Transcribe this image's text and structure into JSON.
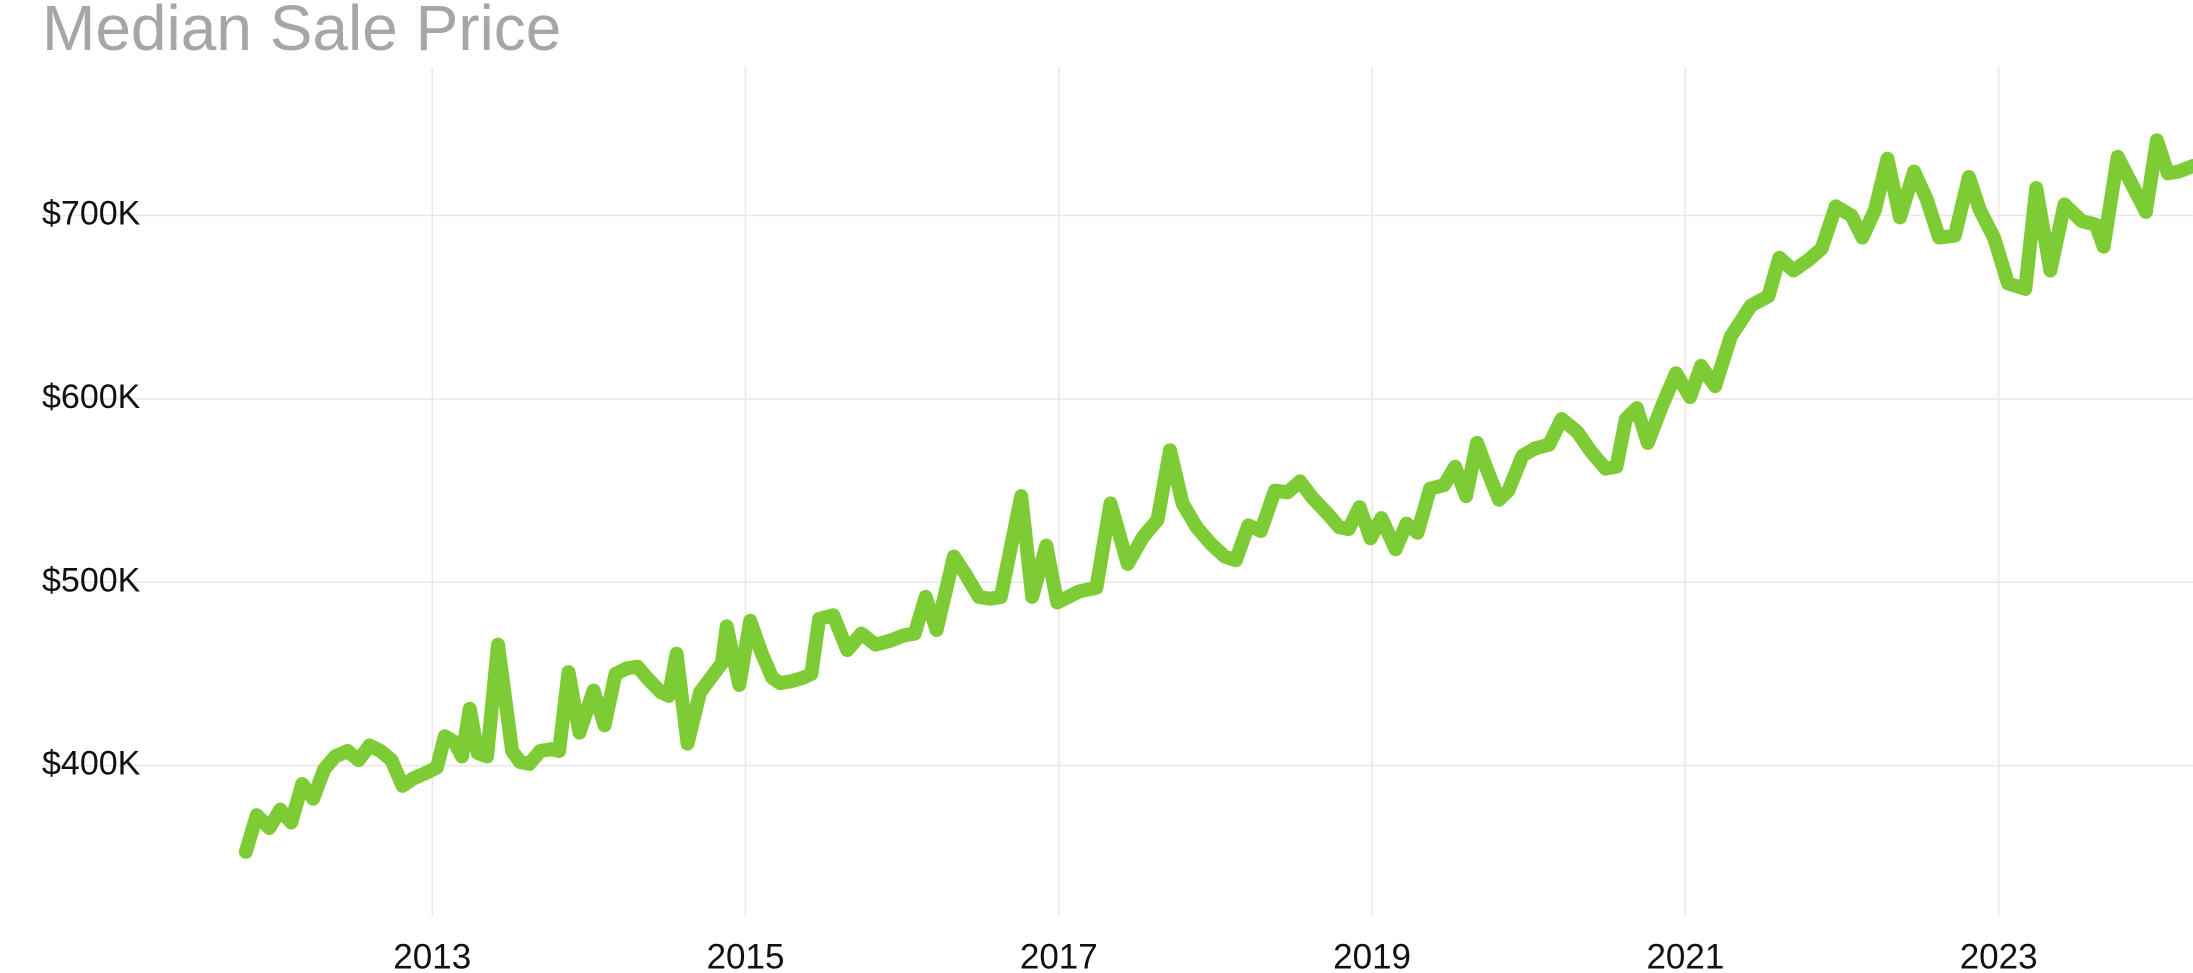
{
  "chart_data": {
    "type": "line",
    "title": "Median Sale Price",
    "color": "#7dcc35",
    "grid": true,
    "xlim": [
      2011.7,
      2024.24
    ],
    "xticks": [
      2013,
      2015,
      2017,
      2019,
      2021,
      2023
    ],
    "ylim": [
      318000,
      781000
    ],
    "yticks": [
      {
        "value": 400000,
        "label": "$400K"
      },
      {
        "value": 500000,
        "label": "$500K"
      },
      {
        "value": 600000,
        "label": "$600K"
      },
      {
        "value": 700000,
        "label": "$700K"
      }
    ],
    "x": [
      2011.81,
      2011.88,
      2011.96,
      2012.03,
      2012.1,
      2012.17,
      2012.24,
      2012.31,
      2012.38,
      2012.46,
      2012.53,
      2012.6,
      2012.67,
      2012.74,
      2012.81,
      2012.88,
      2012.96,
      2013.03,
      2013.08,
      2013.14,
      2013.19,
      2013.24,
      2013.29,
      2013.35,
      2013.42,
      2013.51,
      2013.56,
      2013.62,
      2013.69,
      2013.76,
      2013.81,
      2013.87,
      2013.94,
      2014.03,
      2014.1,
      2014.17,
      2014.24,
      2014.31,
      2014.38,
      2014.46,
      2014.51,
      2014.56,
      2014.63,
      2014.71,
      2014.78,
      2014.85,
      2014.88,
      2014.96,
      2015.03,
      2015.1,
      2015.17,
      2015.22,
      2015.29,
      2015.37,
      2015.42,
      2015.47,
      2015.56,
      2015.65,
      2015.74,
      2015.83,
      2015.92,
      2016.01,
      2016.08,
      2016.15,
      2016.22,
      2016.33,
      2016.4,
      2016.49,
      2016.56,
      2016.63,
      2016.76,
      2016.83,
      2016.92,
      2016.99,
      2017.06,
      2017.13,
      2017.24,
      2017.33,
      2017.44,
      2017.54,
      2017.63,
      2017.71,
      2017.79,
      2017.88,
      2017.97,
      2018.06,
      2018.13,
      2018.21,
      2018.29,
      2018.38,
      2018.46,
      2018.54,
      2018.62,
      2018.72,
      2018.79,
      2018.85,
      2018.92,
      2018.99,
      2019.06,
      2019.15,
      2019.22,
      2019.29,
      2019.37,
      2019.46,
      2019.53,
      2019.6,
      2019.67,
      2019.74,
      2019.81,
      2019.87,
      2019.96,
      2020.04,
      2020.13,
      2020.21,
      2020.31,
      2020.4,
      2020.49,
      2020.56,
      2020.62,
      2020.69,
      2020.76,
      2020.85,
      2020.94,
      2021.03,
      2021.1,
      2021.19,
      2021.29,
      2021.42,
      2021.53,
      2021.6,
      2021.69,
      2021.79,
      2021.87,
      2021.96,
      2022.06,
      2022.13,
      2022.21,
      2022.29,
      2022.37,
      2022.46,
      2022.54,
      2022.62,
      2022.72,
      2022.81,
      2022.88,
      2022.97,
      2023.06,
      2023.17,
      2023.24,
      2023.33,
      2023.42,
      2023.53,
      2023.62,
      2023.67,
      2023.76,
      2023.85,
      2023.94,
      2024.01,
      2024.08,
      2024.15,
      2024.24
    ],
    "values": [
      353000,
      373000,
      366000,
      376000,
      369000,
      390000,
      382000,
      398000,
      405000,
      408000,
      403000,
      411000,
      408000,
      403000,
      389000,
      393000,
      396000,
      399000,
      416000,
      413000,
      405000,
      431000,
      407000,
      405000,
      466000,
      408000,
      402000,
      401000,
      408000,
      409000,
      408000,
      451000,
      418000,
      441000,
      422000,
      450000,
      453000,
      454000,
      447000,
      440000,
      438000,
      461000,
      412000,
      440000,
      448000,
      456000,
      476000,
      444000,
      479000,
      462000,
      448000,
      445000,
      446000,
      448000,
      450000,
      480000,
      482000,
      463000,
      472000,
      466000,
      468000,
      471000,
      472000,
      492000,
      474000,
      514000,
      505000,
      492000,
      491000,
      492000,
      547000,
      492000,
      520000,
      489000,
      492000,
      495000,
      497000,
      543000,
      510000,
      525000,
      534000,
      572000,
      543000,
      530000,
      521000,
      514000,
      512000,
      531000,
      528000,
      550000,
      549000,
      555000,
      546000,
      537000,
      530000,
      529000,
      541000,
      524000,
      535000,
      518000,
      532000,
      527000,
      551000,
      553000,
      563000,
      547000,
      576000,
      560000,
      545000,
      550000,
      569000,
      573000,
      575000,
      589000,
      582000,
      571000,
      562000,
      563000,
      589000,
      595000,
      576000,
      596000,
      614000,
      601000,
      618000,
      607000,
      634000,
      651000,
      656000,
      677000,
      670000,
      676000,
      682000,
      705000,
      700000,
      688000,
      703000,
      731000,
      699000,
      724000,
      709000,
      688000,
      689000,
      721000,
      703000,
      688000,
      663000,
      660000,
      715000,
      670000,
      706000,
      697000,
      695000,
      683000,
      732000,
      717000,
      702000,
      741000,
      723000,
      724000,
      727000
    ]
  }
}
